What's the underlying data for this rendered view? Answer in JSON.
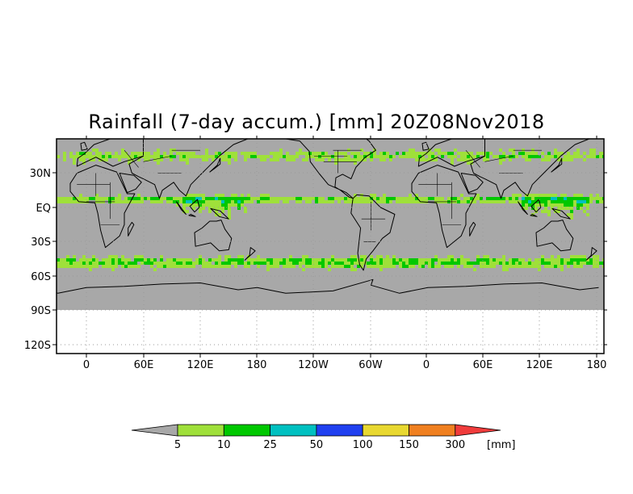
{
  "title": "Rainfall (7-day accum.) [mm] 20Z08Nov2018",
  "y_ticks": [
    "30N",
    "EQ",
    "30S",
    "60S",
    "90S",
    "120S"
  ],
  "x_ticks": [
    "0",
    "60E",
    "120E",
    "180",
    "120W",
    "60W",
    "0",
    "60E",
    "120E",
    "180"
  ],
  "colorbar": {
    "labels": [
      "5",
      "10",
      "25",
      "50",
      "100",
      "150",
      "300"
    ],
    "unit": "[mm]",
    "colors": {
      "under": "#a8a8a8",
      "bins": [
        "#9fe03a",
        "#00c800",
        "#00c0c0",
        "#2040f0",
        "#e8d830",
        "#f08020"
      ],
      "over": "#f03c3c"
    }
  },
  "map": {
    "land_color": "#a8a8a8",
    "ocean_dry_color": "#a8a8a8",
    "below_cutoff_color": "#ffffff",
    "grid": "dotted"
  }
}
